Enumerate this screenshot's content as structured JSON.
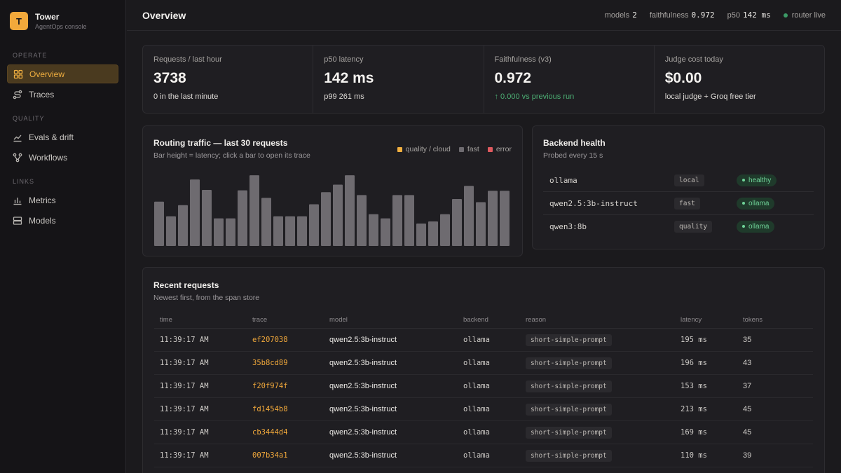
{
  "brand": {
    "logo_letter": "T",
    "name": "Tower",
    "subtitle": "AgentOps console"
  },
  "nav": {
    "sections": [
      {
        "label": "OPERATE",
        "items": [
          {
            "label": "Overview",
            "icon": "grid-icon",
            "active": true
          },
          {
            "label": "Traces",
            "icon": "route-icon"
          }
        ]
      },
      {
        "label": "QUALITY",
        "items": [
          {
            "label": "Evals & drift",
            "icon": "trend-icon"
          },
          {
            "label": "Workflows",
            "icon": "workflow-icon"
          }
        ]
      },
      {
        "label": "LINKS",
        "items": [
          {
            "label": "Metrics",
            "icon": "bar-chart-icon"
          },
          {
            "label": "Models",
            "icon": "database-icon"
          }
        ]
      }
    ]
  },
  "topbar": {
    "title": "Overview",
    "stats": [
      {
        "label": "models",
        "value": "2"
      },
      {
        "label": "faithfulness",
        "value": "0.972"
      },
      {
        "label": "p50",
        "value": "142 ms"
      }
    ],
    "status": "router live",
    "status_color": "#3c9a66"
  },
  "kpis": [
    {
      "label": "Requests / last hour",
      "value": "3738",
      "foot": "0 in the last minute",
      "trend": "neutral"
    },
    {
      "label": "p50 latency",
      "value": "142 ms",
      "foot": "p99 261 ms",
      "trend": "neutral"
    },
    {
      "label": "Faithfulness (v3)",
      "value": "0.972",
      "foot": "↑ 0.000 vs previous run",
      "trend": "up"
    },
    {
      "label": "Judge cost today",
      "value": "$0.00",
      "foot": "local judge + Groq free tier",
      "trend": "neutral"
    }
  ],
  "traffic": {
    "title": "Routing traffic — last 30 requests",
    "subtitle": "Bar height = latency; click a bar to open its trace",
    "legend": [
      {
        "label": "quality / cloud",
        "color": "#f2b040"
      },
      {
        "label": "fast",
        "color": "#6e6b70"
      },
      {
        "label": "error",
        "color": "#e05a5f"
      }
    ]
  },
  "chart_data": {
    "type": "bar",
    "title": "Routing traffic — last 30 requests",
    "xlabel": "",
    "ylabel": "",
    "categories": [
      "1",
      "2",
      "3",
      "4",
      "5",
      "6",
      "7",
      "8",
      "9",
      "10",
      "11",
      "12",
      "13",
      "14",
      "15",
      "16",
      "17",
      "18",
      "19",
      "20",
      "21",
      "22",
      "23",
      "24",
      "25",
      "26",
      "27",
      "28",
      "29",
      "30"
    ],
    "series": [
      {
        "name": "fast",
        "color": "#6e6b70",
        "values": [
          188,
          126,
          173,
          282,
          238,
          117,
          117,
          236,
          300,
          204,
          126,
          126,
          126,
          177,
          228,
          260,
          300,
          216,
          135,
          117,
          216,
          216,
          95,
          104,
          135,
          199,
          255,
          186,
          234,
          234
        ]
      }
    ],
    "ylim": [
      0,
      330
    ],
    "grid": false,
    "legend": "top-right"
  },
  "health": {
    "title": "Backend health",
    "subtitle": "Probed every 15 s",
    "rows": [
      {
        "name": "ollama",
        "type": "local",
        "status": "healthy"
      },
      {
        "name": "qwen2.5:3b-instruct",
        "type": "fast",
        "status": "ollama"
      },
      {
        "name": "qwen3:8b",
        "type": "quality",
        "status": "ollama"
      }
    ]
  },
  "recent": {
    "title": "Recent requests",
    "subtitle": "Newest first, from the span store",
    "columns": [
      "time",
      "trace",
      "model",
      "backend",
      "reason",
      "latency",
      "tokens"
    ],
    "rows": [
      {
        "time": "11:39:17 AM",
        "trace": "ef207038",
        "model": "qwen2.5:3b-instruct",
        "backend": "ollama",
        "reason": "short-simple-prompt",
        "latency": "195 ms",
        "tokens": "35"
      },
      {
        "time": "11:39:17 AM",
        "trace": "35b8cd89",
        "model": "qwen2.5:3b-instruct",
        "backend": "ollama",
        "reason": "short-simple-prompt",
        "latency": "196 ms",
        "tokens": "43"
      },
      {
        "time": "11:39:17 AM",
        "trace": "f20f974f",
        "model": "qwen2.5:3b-instruct",
        "backend": "ollama",
        "reason": "short-simple-prompt",
        "latency": "153 ms",
        "tokens": "37"
      },
      {
        "time": "11:39:17 AM",
        "trace": "fd1454b8",
        "model": "qwen2.5:3b-instruct",
        "backend": "ollama",
        "reason": "short-simple-prompt",
        "latency": "213 ms",
        "tokens": "45"
      },
      {
        "time": "11:39:17 AM",
        "trace": "cb3444d4",
        "model": "qwen2.5:3b-instruct",
        "backend": "ollama",
        "reason": "short-simple-prompt",
        "latency": "169 ms",
        "tokens": "45"
      },
      {
        "time": "11:39:17 AM",
        "trace": "007b34a1",
        "model": "qwen2.5:3b-instruct",
        "backend": "ollama",
        "reason": "short-simple-prompt",
        "latency": "110 ms",
        "tokens": "39"
      }
    ]
  }
}
